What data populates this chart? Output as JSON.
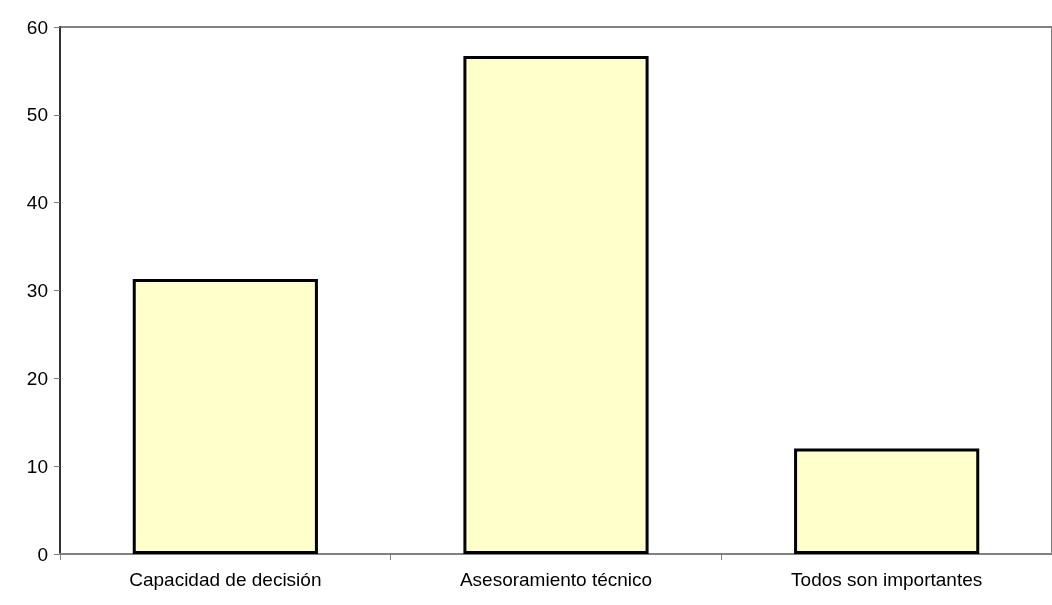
{
  "chart_data": {
    "type": "bar",
    "categories": [
      "Capacidad de decisión",
      "Asesoramiento técnico",
      "Todos son importantes"
    ],
    "values": [
      31.3,
      56.7,
      12.0
    ],
    "color": "#ffffcc",
    "ylim": [
      0,
      60
    ],
    "yticks": [
      0,
      10,
      20,
      30,
      40,
      50,
      60
    ]
  }
}
